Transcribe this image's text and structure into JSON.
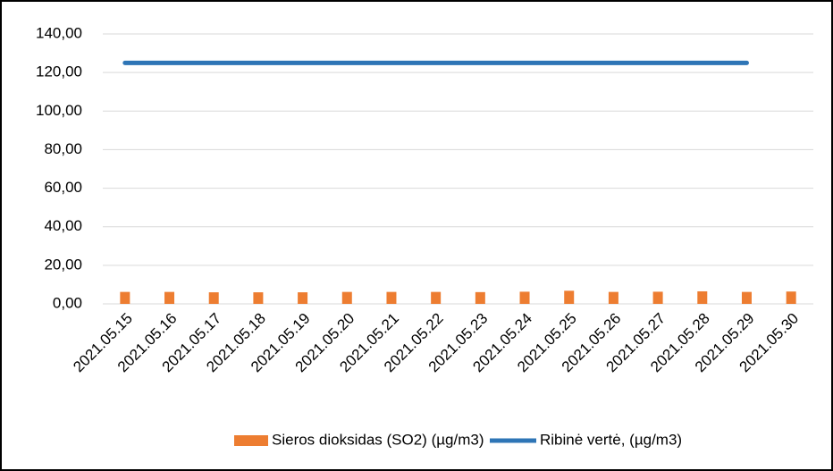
{
  "chart_data": {
    "type": "bar",
    "categories": [
      "2021.05.15",
      "2021.05.16",
      "2021.05.17",
      "2021.05.18",
      "2021.05.19",
      "2021.05.20",
      "2021.05.21",
      "2021.05.22",
      "2021.05.23",
      "2021.05.24",
      "2021.05.25",
      "2021.05.26",
      "2021.05.27",
      "2021.05.28",
      "2021.05.29",
      "2021.05.30"
    ],
    "series": [
      {
        "name": "Sieros dioksidas (SO2) (µg/m3)",
        "color": "#ed7d31",
        "type": "bar",
        "values": [
          6.2,
          6.2,
          6.0,
          6.0,
          6.0,
          6.2,
          6.2,
          6.2,
          6.1,
          6.3,
          6.8,
          6.2,
          6.3,
          6.5,
          6.2,
          6.4
        ]
      },
      {
        "name": "Ribinė vertė, (µg/m3)",
        "color": "#2e75b6",
        "type": "line",
        "values": [
          125,
          125,
          125,
          125,
          125,
          125,
          125,
          125,
          125,
          125,
          125,
          125,
          125,
          125,
          125,
          null
        ]
      }
    ],
    "ylim": [
      0,
      140
    ],
    "yticks": [
      {
        "value": 0,
        "label": "0,00"
      },
      {
        "value": 20,
        "label": "20,00"
      },
      {
        "value": 40,
        "label": "40,00"
      },
      {
        "value": 60,
        "label": "60,00"
      },
      {
        "value": 80,
        "label": "80,00"
      },
      {
        "value": 100,
        "label": "100,00"
      },
      {
        "value": 120,
        "label": "120,00"
      },
      {
        "value": 140,
        "label": "140,00"
      }
    ],
    "grid": true
  }
}
